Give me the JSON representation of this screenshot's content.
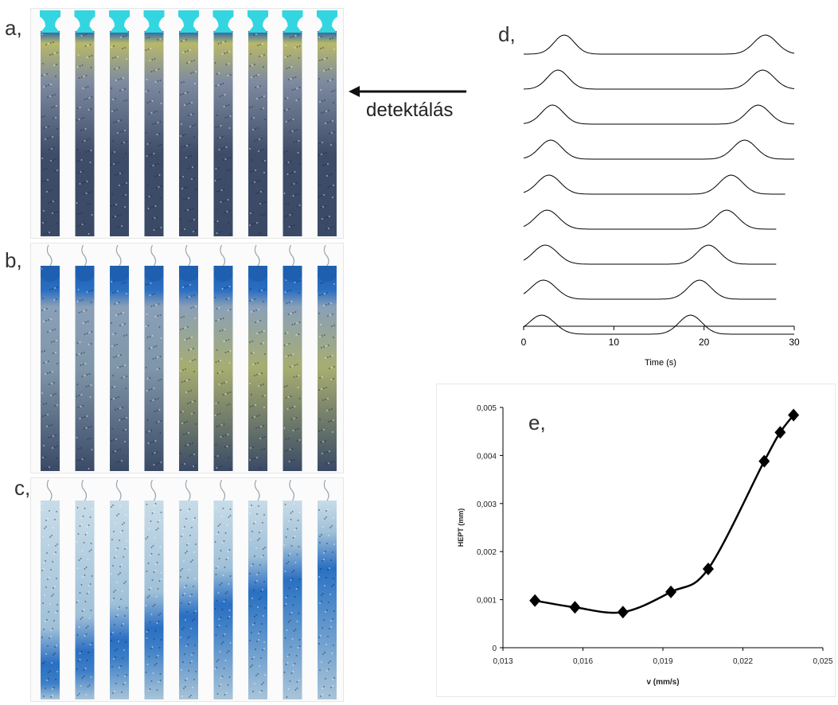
{
  "panels": {
    "a": "a,",
    "b": "b,",
    "c": "c,",
    "d": "d,",
    "e": "e,"
  },
  "arrow_label": "detektálás",
  "columns_per_panel": 9,
  "colors": {
    "cyan_top": "#33d6e0",
    "dark_blue_band": "#1f5fb0",
    "blue_band": "#2a6fc2",
    "column_dark": "#3a4a66",
    "column_mid": "#8a9fb8",
    "olive": "#b8b86a",
    "line": "#000000"
  },
  "chart_d": {
    "type": "line",
    "x_ticks": [
      "0",
      "10",
      "20",
      "30"
    ],
    "xlim": [
      0,
      30
    ],
    "xlabel": "Time (s)",
    "series_count": 9,
    "traces": [
      {
        "first_peak": 4.5,
        "second_peak": 26.8,
        "end": 30
      },
      {
        "first_peak": 3.8,
        "second_peak": 26.5,
        "end": 30
      },
      {
        "first_peak": 3.2,
        "second_peak": 26.0,
        "end": 30
      },
      {
        "first_peak": 3.0,
        "second_peak": 24.5,
        "end": 30
      },
      {
        "first_peak": 2.8,
        "second_peak": 23.0,
        "end": 29
      },
      {
        "first_peak": 2.6,
        "second_peak": 22.5,
        "end": 28
      },
      {
        "first_peak": 2.4,
        "second_peak": 20.5,
        "end": 28
      },
      {
        "first_peak": 2.2,
        "second_peak": 19.5,
        "end": 28
      },
      {
        "first_peak": 2.0,
        "second_peak": 18.5,
        "end": 30
      }
    ]
  },
  "chart_data": {
    "type": "line",
    "title": "",
    "xlabel": "v (mm/s)",
    "ylabel": "HEPT (mm)",
    "x_ticks": [
      "0,013",
      "0,016",
      "0,019",
      "0,022",
      "0,025"
    ],
    "y_ticks": [
      "0",
      "0,001",
      "0,002",
      "0,003",
      "0,004",
      "0,005"
    ],
    "xlim": [
      0.013,
      0.025
    ],
    "ylim": [
      0,
      0.005
    ],
    "x": [
      0.0142,
      0.0157,
      0.0175,
      0.0193,
      0.0207,
      0.0228,
      0.0234,
      0.0239
    ],
    "y": [
      0.00098,
      0.00084,
      0.00074,
      0.00116,
      0.00164,
      0.00388,
      0.00448,
      0.00484
    ],
    "marker": "diamond"
  }
}
